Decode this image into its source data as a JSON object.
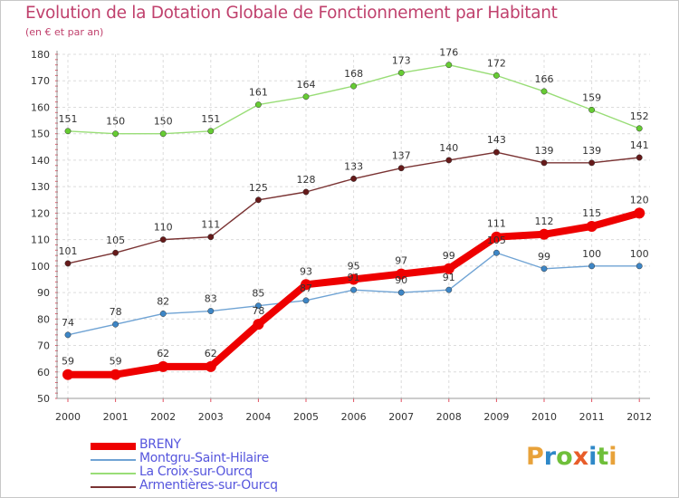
{
  "title": "Evolution de la Dotation Globale de Fonctionnement par Habitant",
  "subtitle": "(en € et par an)",
  "logo": {
    "letters": [
      "P",
      "r",
      "o",
      "x",
      "i",
      "t",
      "i"
    ],
    "colors": [
      "#e8a23a",
      "#2f88c8",
      "#6fbf3a",
      "#e85d2a",
      "#2f88c8",
      "#6fbf3a",
      "#e8a23a"
    ]
  },
  "chart_data": {
    "type": "line",
    "title": "Evolution de la Dotation Globale de Fonctionnement par Habitant",
    "subtitle": "(en € et par an)",
    "x": [
      "2000",
      "2001",
      "2002",
      "2003",
      "2004",
      "2005",
      "2006",
      "2007",
      "2008",
      "2009",
      "2010",
      "2011",
      "2012"
    ],
    "ylim": [
      50,
      180
    ],
    "yticks": [
      "50",
      "60",
      "70",
      "80",
      "90",
      "100",
      "110",
      "120",
      "130",
      "140",
      "150",
      "160",
      "170",
      "180"
    ],
    "grid": true,
    "legend_position": "bottom-left",
    "series": [
      {
        "name": "La Croix-sur-Ourcq",
        "color": "#99dd77",
        "point_color": "#66cc33",
        "values": [
          151,
          150,
          150,
          151,
          161,
          164,
          168,
          173,
          176,
          172,
          166,
          159,
          152
        ],
        "labels": [
          "151",
          "150",
          "150",
          "151",
          "161",
          "164",
          "168",
          "173",
          "176",
          "172",
          "166",
          "159",
          "152"
        ]
      },
      {
        "name": "Armentières-sur-Ourcq",
        "color": "#7a3333",
        "point_color": "#661a1a",
        "values": [
          101,
          105,
          110,
          111,
          125,
          128,
          133,
          137,
          140,
          143,
          139,
          139,
          141
        ],
        "labels": [
          "101",
          "105",
          "110",
          "111",
          "125",
          "128",
          "133",
          "137",
          "140",
          "143",
          "139",
          "139",
          "141"
        ]
      },
      {
        "name": "Montgru-Saint-Hilaire",
        "color": "#6fa3d4",
        "point_color": "#3d86c6",
        "values": [
          74,
          78,
          82,
          83,
          85,
          87,
          91,
          90,
          91,
          105,
          99,
          100,
          100
        ],
        "labels": [
          "74",
          "78",
          "82",
          "83",
          "85",
          "87",
          "91",
          "90",
          "91",
          "105",
          "99",
          "100",
          "100"
        ]
      },
      {
        "name": "BRENY",
        "color": "#ee0000",
        "point_color": "#ee0000",
        "values": [
          59,
          59,
          62,
          62,
          78,
          93,
          95,
          97,
          99,
          111,
          112,
          115,
          120
        ],
        "labels": [
          "59",
          "59",
          "62",
          "62",
          "78",
          "93",
          "95",
          "97",
          "99",
          "111",
          "112",
          "115",
          "120"
        ]
      }
    ],
    "legend": [
      {
        "name": "BRENY",
        "color": "#ee0000"
      },
      {
        "name": "Montgru-Saint-Hilaire",
        "color": "#6fa3d4"
      },
      {
        "name": "La Croix-sur-Ourcq",
        "color": "#99dd77"
      },
      {
        "name": "Armentières-sur-Ourcq",
        "color": "#7a3333"
      }
    ]
  }
}
